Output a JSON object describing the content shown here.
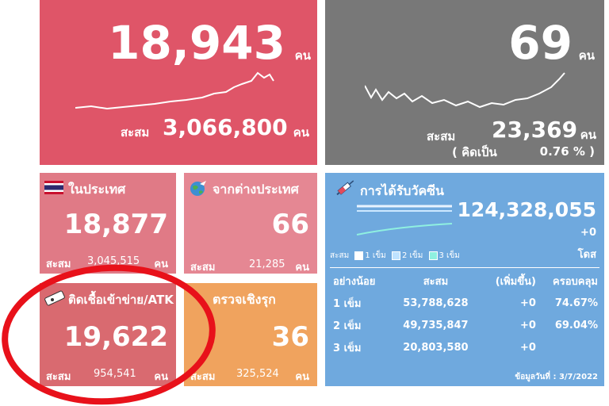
{
  "daily_cases": {
    "value": "18,943",
    "unit": "คน",
    "cumulative_label": "สะสม",
    "cumulative": "3,066,800",
    "cumulative_unit": "คน"
  },
  "daily_deaths": {
    "value": "69",
    "unit": "คน",
    "cumulative_label": "สะสม",
    "cumulative": "23,369",
    "cumulative_unit": "คน",
    "ratio_prefix": "( คิดเป็น",
    "ratio": "0.76 % )"
  },
  "domestic": {
    "title": "ในประเทศ",
    "value": "18,877",
    "cumulative_label": "สะสม",
    "cumulative": "3,045,515",
    "cumulative_unit": "คน"
  },
  "imported": {
    "title": "จากต่างประเทศ",
    "value": "66",
    "cumulative_label": "สะสม",
    "cumulative": "21,285",
    "cumulative_unit": "คน"
  },
  "atk": {
    "title": "ติดเชื้อเข้าข่าย/ATK",
    "value": "19,622",
    "cumulative_label": "สะสม",
    "cumulative": "954,541",
    "cumulative_unit": "คน"
  },
  "proactive": {
    "title": "ตรวจเชิงรุก",
    "value": "36",
    "cumulative_label": "สะสม",
    "cumulative": "325,524",
    "cumulative_unit": "คน"
  },
  "vaccine": {
    "title": "การได้รับวัคซีน",
    "total": "124,328,055",
    "increase": "+0",
    "unit": "โดส",
    "legend": {
      "label": "สะสม",
      "items": [
        "1 เข็ม",
        "2 เข็ม",
        "3 เข็ม"
      ]
    },
    "table": {
      "headers": [
        "อย่างน้อย",
        "สะสม",
        "(เพิ่มขึ้น)",
        "ครอบคลุม"
      ],
      "rows": [
        [
          "1 เข็ม",
          "53,788,628",
          "+0",
          "74.67%"
        ],
        [
          "2 เข็ม",
          "49,735,847",
          "+0",
          "69.04%"
        ],
        [
          "3 เข็ม",
          "20,803,580",
          "+0"
        ]
      ]
    },
    "date": "ข้อมูลวันที่ : 3/7/2022"
  }
}
